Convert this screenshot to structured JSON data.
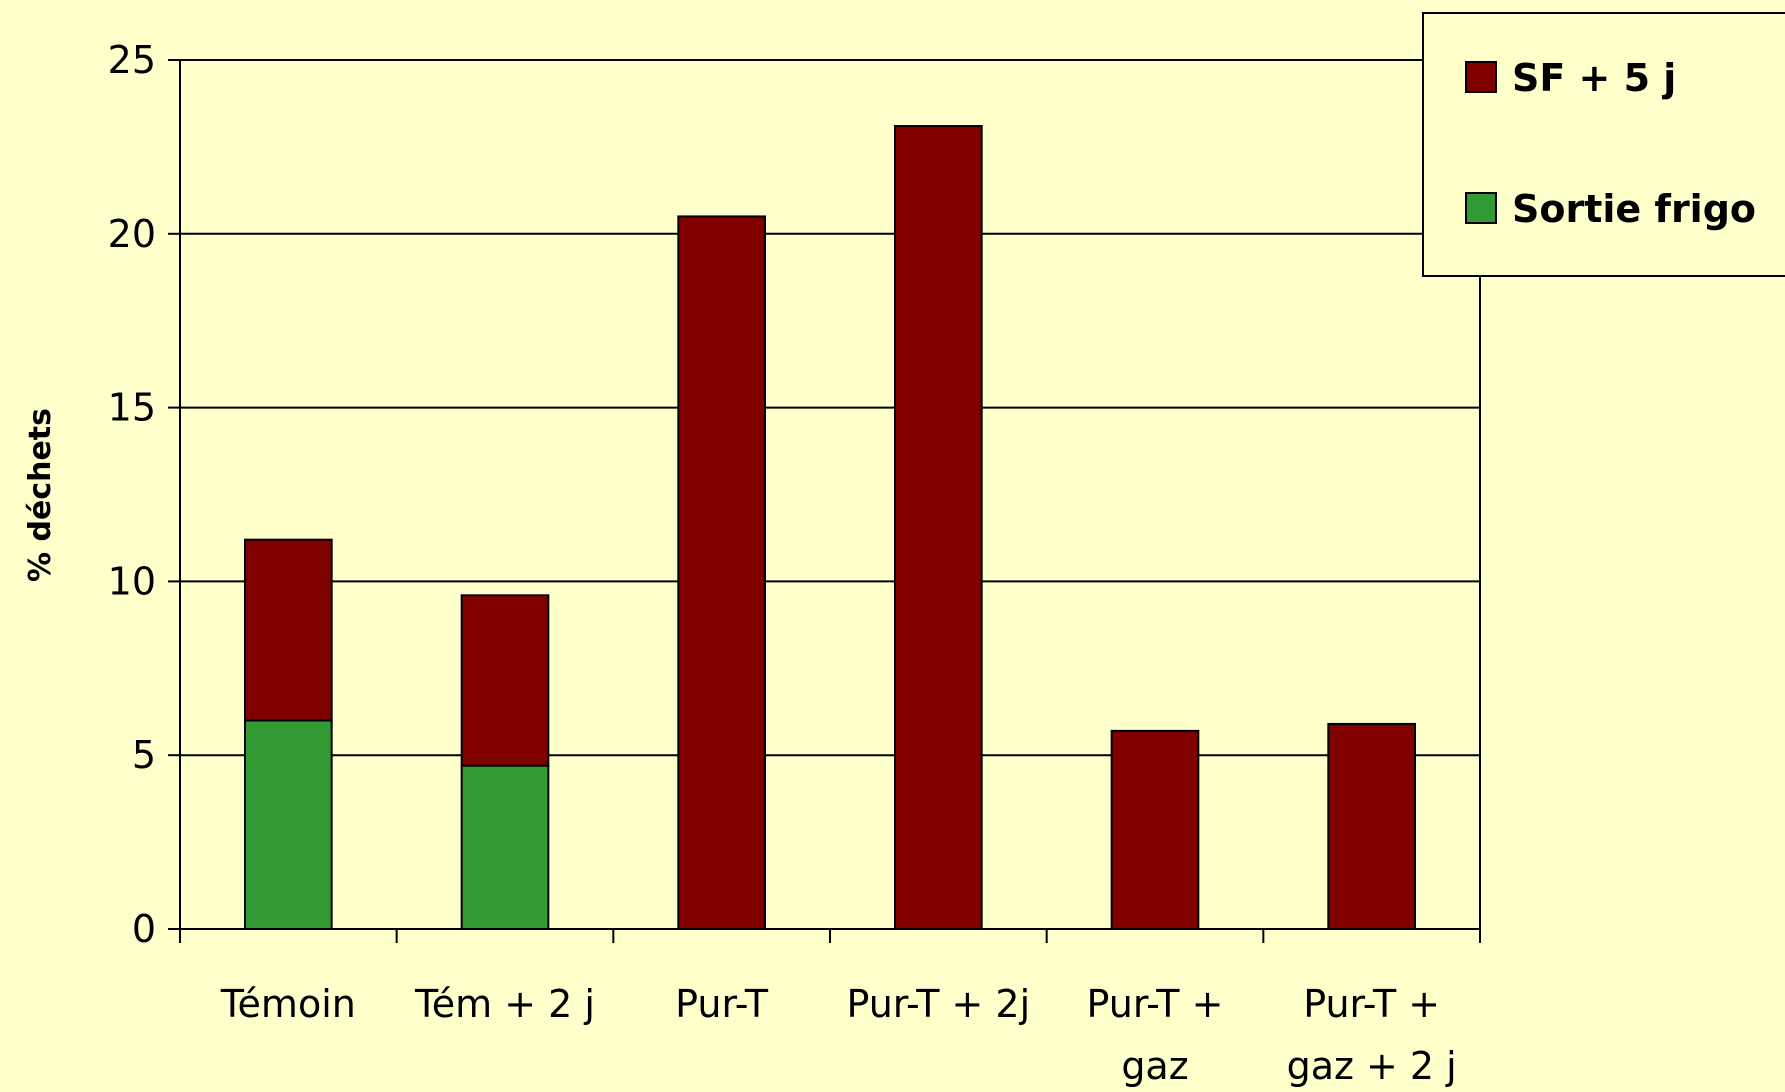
{
  "chart_data": {
    "type": "bar",
    "stacked": true,
    "categories": [
      [
        "Témoin"
      ],
      [
        "Tém + 2 j"
      ],
      [
        "Pur-T"
      ],
      [
        "Pur-T + 2j"
      ],
      [
        "Pur-T +",
        "gaz"
      ],
      [
        "Pur-T +",
        "gaz + 2 j"
      ]
    ],
    "series": [
      {
        "name": "Sortie frigo",
        "color": "#339933",
        "values": [
          6.0,
          4.7,
          0,
          0,
          0,
          0
        ]
      },
      {
        "name": "SF + 5 j",
        "color": "#800000",
        "values": [
          5.2,
          4.9,
          20.5,
          23.1,
          5.7,
          5.9
        ]
      }
    ],
    "legend_order": [
      "SF + 5 j",
      "Sortie frigo"
    ],
    "ylabel": "% déchets",
    "xlabel": "",
    "ylim": [
      0,
      25
    ],
    "yticks": [
      0,
      5,
      10,
      15,
      20,
      25
    ],
    "grid": true,
    "legend_position": "top-right"
  }
}
